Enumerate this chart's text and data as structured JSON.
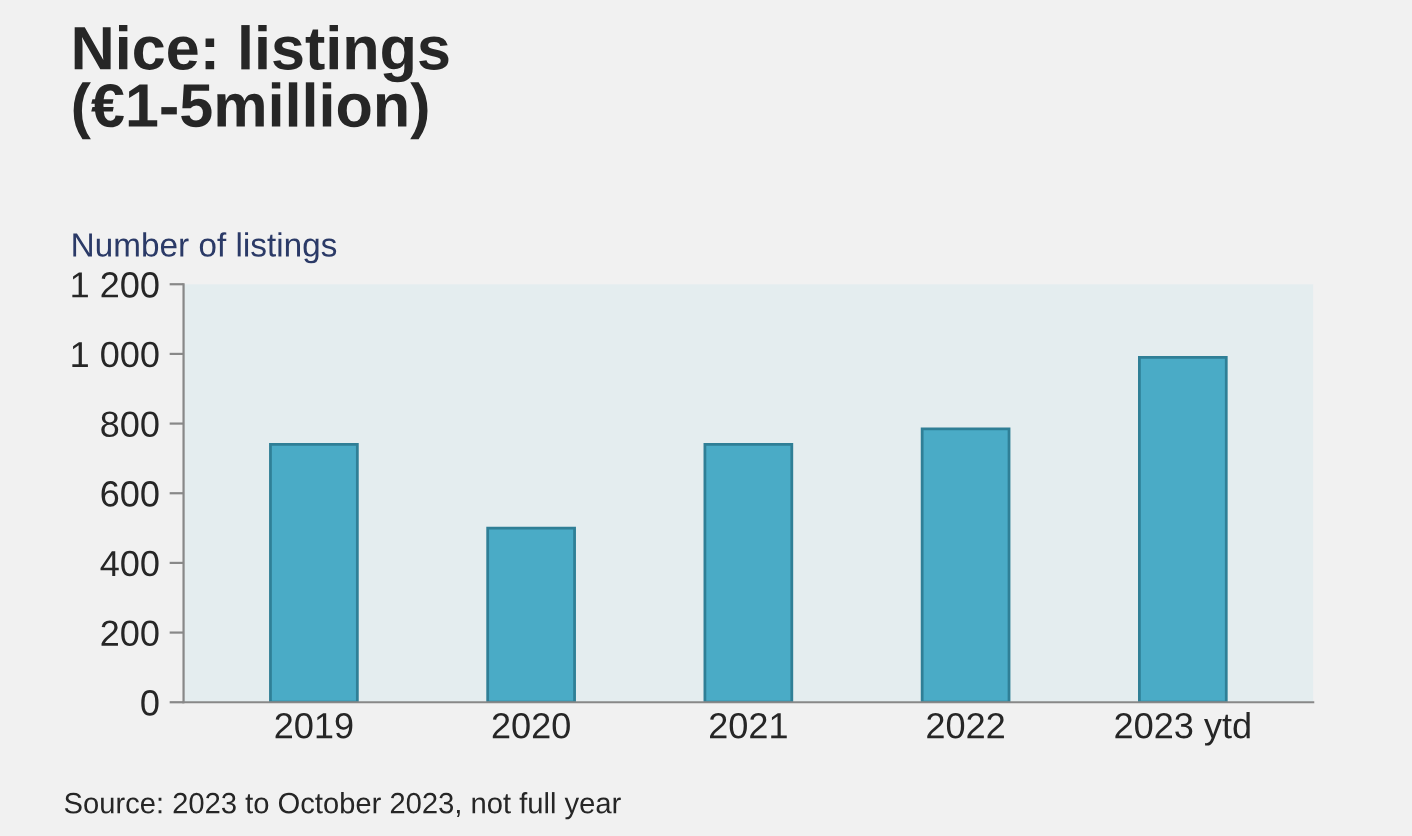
{
  "chart_data": {
    "type": "bar",
    "title": "Nice: listings\n(€1-5million)",
    "ylabel": "Number of listings",
    "categories": [
      "2019",
      "2020",
      "2021",
      "2022",
      "2023 ytd"
    ],
    "values": [
      740,
      500,
      740,
      785,
      990
    ],
    "color": "#4aabc6",
    "ylim": [
      0,
      1200
    ],
    "yticks": [
      {
        "value": 0,
        "label": "0"
      },
      {
        "value": 200,
        "label": "200"
      },
      {
        "value": 400,
        "label": "400"
      },
      {
        "value": 600,
        "label": "600"
      },
      {
        "value": 800,
        "label": "800"
      },
      {
        "value": 1000,
        "label": "1 000"
      },
      {
        "value": 1200,
        "label": "1 200"
      }
    ],
    "grid": false,
    "annotations": [
      "Source: 2023 to October 2023, not full year"
    ]
  }
}
